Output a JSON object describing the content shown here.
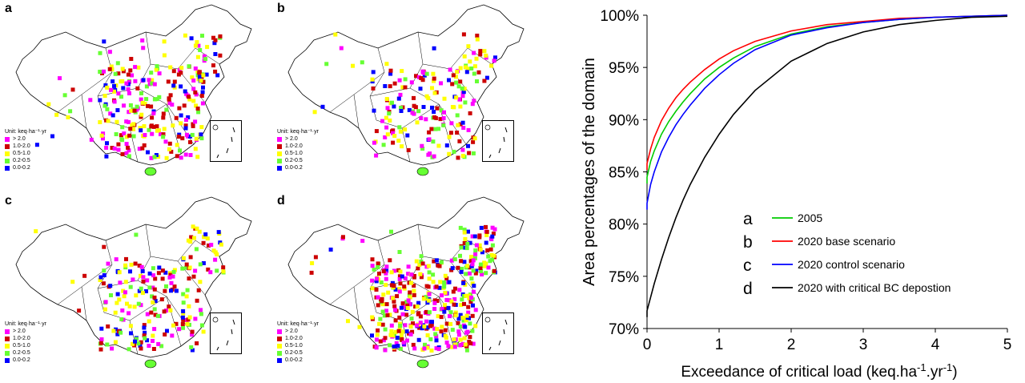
{
  "panels": [
    {
      "label": "a",
      "unit": "Unit: keq·ha⁻¹·yr",
      "density": 0.55
    },
    {
      "label": "b",
      "unit": "Unit: keq·ha⁻¹·yr",
      "density": 0.38
    },
    {
      "label": "c",
      "unit": "Unit: keq·ha⁻¹·yr",
      "density": 0.42
    },
    {
      "label": "d",
      "unit": "Unit: keq·ha⁻¹·yr",
      "density": 0.85
    }
  ],
  "map_legend": [
    {
      "label": "> 2.0",
      "color": "#ff00ff"
    },
    {
      "label": "1.0-2.0",
      "color": "#cc0000"
    },
    {
      "label": "0.5-1.0",
      "color": "#ffff00"
    },
    {
      "label": "0.2-0.5",
      "color": "#66ff33"
    },
    {
      "label": "0.0-0.2",
      "color": "#0000ff"
    }
  ],
  "chart_data": {
    "type": "line",
    "xlabel": "Exceedance of critical load (keq.ha-1.yr-1)",
    "xlabel_main": "Exceedance of critical load (keq.ha",
    "xlabel_sup1": "-1",
    "xlabel_mid": ".yr",
    "xlabel_sup2": "-1",
    "xlabel_end": ")",
    "ylabel": "Area percentages of the domain",
    "xlim": [
      0,
      5
    ],
    "ylim": [
      70,
      100
    ],
    "xticks": [
      0,
      1,
      2,
      3,
      4,
      5
    ],
    "yticks": [
      70,
      75,
      80,
      85,
      90,
      95,
      100
    ],
    "ytick_labels": [
      "70%",
      "75%",
      "80%",
      "85%",
      "90%",
      "95%",
      "100%"
    ],
    "legend_position": "lower-right",
    "series": [
      {
        "letter": "a",
        "name": "2005",
        "color": "#00cc00",
        "x": [
          0,
          0.05,
          0.1,
          0.2,
          0.3,
          0.4,
          0.5,
          0.6,
          0.8,
          1.0,
          1.2,
          1.5,
          2.0,
          2.5,
          3.0,
          3.5,
          4.0,
          4.5,
          5.0
        ],
        "y": [
          84.5,
          86.0,
          87.0,
          88.6,
          89.8,
          90.8,
          91.7,
          92.5,
          93.9,
          95.0,
          95.9,
          97.0,
          98.2,
          98.9,
          99.3,
          99.6,
          99.8,
          99.9,
          100.0
        ]
      },
      {
        "letter": "b",
        "name": "2020 base scenario",
        "color": "#ff0000",
        "x": [
          0,
          0.05,
          0.1,
          0.2,
          0.3,
          0.4,
          0.5,
          0.6,
          0.8,
          1.0,
          1.2,
          1.5,
          2.0,
          2.5,
          3.0,
          3.5,
          4.0,
          4.5,
          5.0
        ],
        "y": [
          85.8,
          87.2,
          88.3,
          89.9,
          91.1,
          92.1,
          92.9,
          93.6,
          94.8,
          95.8,
          96.6,
          97.5,
          98.5,
          99.1,
          99.4,
          99.7,
          99.8,
          99.9,
          100.0
        ]
      },
      {
        "letter": "c",
        "name": "2020 control scenario",
        "color": "#0000ff",
        "x": [
          0,
          0.05,
          0.1,
          0.2,
          0.3,
          0.4,
          0.5,
          0.6,
          0.8,
          1.0,
          1.2,
          1.5,
          2.0,
          2.5,
          3.0,
          3.5,
          4.0,
          4.5,
          5.0
        ],
        "y": [
          82.0,
          83.8,
          85.0,
          86.9,
          88.3,
          89.5,
          90.5,
          91.4,
          93.0,
          94.3,
          95.4,
          96.7,
          98.1,
          98.8,
          99.3,
          99.6,
          99.8,
          99.9,
          100.0
        ]
      },
      {
        "letter": "d",
        "name": "2020 with critical BC depostion",
        "color": "#000000",
        "x": [
          0,
          0.05,
          0.1,
          0.2,
          0.3,
          0.4,
          0.5,
          0.6,
          0.8,
          1.0,
          1.2,
          1.5,
          2.0,
          2.5,
          3.0,
          3.5,
          4.0,
          4.5,
          5.0
        ],
        "y": [
          71.7,
          73.0,
          74.3,
          76.6,
          78.7,
          80.6,
          82.3,
          83.8,
          86.4,
          88.6,
          90.5,
          92.8,
          95.6,
          97.3,
          98.4,
          99.1,
          99.5,
          99.8,
          99.9
        ]
      }
    ]
  }
}
